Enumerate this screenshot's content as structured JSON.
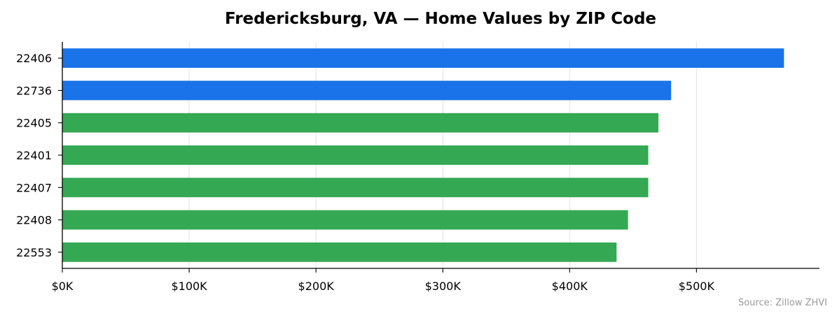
{
  "chart_data": {
    "type": "bar",
    "orientation": "horizontal",
    "title": "Fredericksburg, VA — Home Values by ZIP Code",
    "xlabel": "",
    "ylabel": "",
    "categories": [
      "22406",
      "22736",
      "22405",
      "22401",
      "22407",
      "22408",
      "22553"
    ],
    "values": [
      569000,
      480000,
      470000,
      462000,
      462000,
      446000,
      437000
    ],
    "colors": [
      "#1a73e8",
      "#1a73e8",
      "#34a853",
      "#34a853",
      "#34a853",
      "#34a853",
      "#34a853"
    ],
    "xlim": [
      0,
      597000
    ],
    "xticks": [
      0,
      100000,
      200000,
      300000,
      400000,
      500000
    ],
    "xtick_labels": [
      "$0K",
      "$100K",
      "$200K",
      "$300K",
      "$400K",
      "$500K"
    ],
    "grid": "x",
    "source": "Source: Zillow ZHVI"
  }
}
